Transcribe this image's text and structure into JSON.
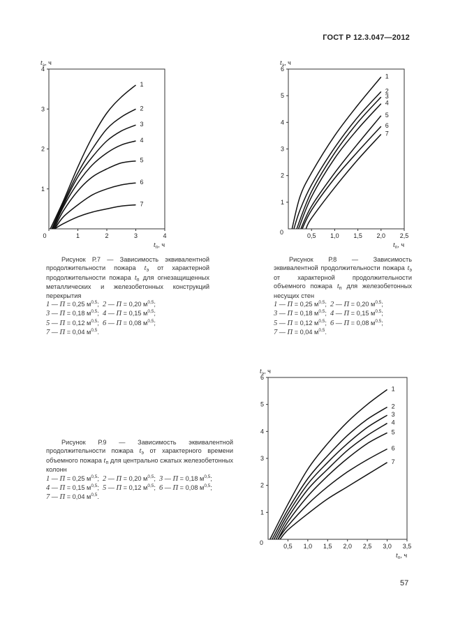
{
  "header": {
    "doc_code": "ГОСТ Р 12.3.047—2012"
  },
  "page_number": "57",
  "chart_data": [
    {
      "type": "line",
      "id": "P7",
      "y_label": {
        "var": "t",
        "sub": "э",
        "unit": ", ч"
      },
      "x_label": {
        "var": "t",
        "sub": "п",
        "unit": ", ч"
      },
      "xlim": [
        0,
        4
      ],
      "ylim": [
        0,
        4
      ],
      "x_ticks": [
        "0",
        "1",
        "2",
        "3",
        "4"
      ],
      "x_tick_values": [
        0,
        1,
        2,
        3,
        4
      ],
      "y_ticks": [
        "1",
        "2",
        "3",
        "4"
      ],
      "y_tick_values": [
        1,
        2,
        3,
        4
      ],
      "origin_label": "0",
      "grid": false,
      "series": [
        {
          "label": "1",
          "points": [
            [
              0.05,
              0
            ],
            [
              0.5,
              0.7
            ],
            [
              1,
              1.55
            ],
            [
              1.5,
              2.3
            ],
            [
              2,
              2.9
            ],
            [
              2.5,
              3.3
            ],
            [
              3,
              3.6
            ]
          ]
        },
        {
          "label": "2",
          "points": [
            [
              0.1,
              0
            ],
            [
              0.5,
              0.65
            ],
            [
              1,
              1.4
            ],
            [
              1.5,
              2.0
            ],
            [
              2,
              2.5
            ],
            [
              2.5,
              2.8
            ],
            [
              3,
              3.0
            ]
          ]
        },
        {
          "label": "3",
          "points": [
            [
              0.12,
              0
            ],
            [
              0.5,
              0.6
            ],
            [
              1,
              1.3
            ],
            [
              1.5,
              1.8
            ],
            [
              2,
              2.2
            ],
            [
              2.5,
              2.45
            ],
            [
              3,
              2.6
            ]
          ]
        },
        {
          "label": "4",
          "points": [
            [
              0.15,
              0
            ],
            [
              0.5,
              0.55
            ],
            [
              1,
              1.15
            ],
            [
              1.5,
              1.6
            ],
            [
              2,
              1.9
            ],
            [
              2.5,
              2.1
            ],
            [
              3,
              2.2
            ]
          ]
        },
        {
          "label": "5",
          "points": [
            [
              0.18,
              0
            ],
            [
              0.5,
              0.45
            ],
            [
              1,
              0.95
            ],
            [
              1.5,
              1.3
            ],
            [
              2,
              1.5
            ],
            [
              2.5,
              1.65
            ],
            [
              3,
              1.7
            ]
          ]
        },
        {
          "label": "6",
          "points": [
            [
              0.2,
              0
            ],
            [
              0.5,
              0.3
            ],
            [
              1,
              0.6
            ],
            [
              1.5,
              0.85
            ],
            [
              2,
              1.0
            ],
            [
              2.5,
              1.1
            ],
            [
              3,
              1.15
            ]
          ]
        },
        {
          "label": "7",
          "points": [
            [
              0.2,
              0
            ],
            [
              0.5,
              0.13
            ],
            [
              1,
              0.3
            ],
            [
              1.5,
              0.42
            ],
            [
              2,
              0.5
            ],
            [
              2.5,
              0.57
            ],
            [
              3,
              0.6
            ]
          ]
        }
      ]
    },
    {
      "type": "line",
      "id": "P8",
      "y_label": {
        "var": "t",
        "sub": "э",
        "unit": ", ч"
      },
      "x_label": {
        "var": "t",
        "sub": "п",
        "unit": ", ч"
      },
      "xlim": [
        0,
        2.5
      ],
      "ylim": [
        0,
        6
      ],
      "x_ticks": [
        "0,5",
        "1,0",
        "1,5",
        "2,0",
        "2,5"
      ],
      "x_tick_values": [
        0.5,
        1,
        1.5,
        2,
        2.5
      ],
      "y_ticks": [
        "1",
        "2",
        "3",
        "4",
        "5",
        "6"
      ],
      "y_tick_values": [
        1,
        2,
        3,
        4,
        5,
        6
      ],
      "origin_label": "0",
      "grid": false,
      "series": [
        {
          "label": "1",
          "points": [
            [
              0.08,
              0
            ],
            [
              0.25,
              1.2
            ],
            [
              0.5,
              2.1
            ],
            [
              1,
              3.5
            ],
            [
              1.5,
              4.65
            ],
            [
              2,
              5.7
            ]
          ]
        },
        {
          "label": "2",
          "points": [
            [
              0.12,
              0
            ],
            [
              0.25,
              0.7
            ],
            [
              0.5,
              1.65
            ],
            [
              1,
              3.05
            ],
            [
              1.5,
              4.2
            ],
            [
              2,
              5.15
            ]
          ]
        },
        {
          "label": "3",
          "points": [
            [
              0.18,
              0
            ],
            [
              0.5,
              1.4
            ],
            [
              1,
              2.85
            ],
            [
              1.5,
              4.0
            ],
            [
              2,
              4.95
            ]
          ]
        },
        {
          "label": "4",
          "points": [
            [
              0.22,
              0
            ],
            [
              0.5,
              1.2
            ],
            [
              1,
              2.65
            ],
            [
              1.5,
              3.75
            ],
            [
              2,
              4.7
            ]
          ]
        },
        {
          "label": "5",
          "points": [
            [
              0.27,
              0
            ],
            [
              0.5,
              0.85
            ],
            [
              1,
              2.1
            ],
            [
              1.5,
              3.2
            ],
            [
              2,
              4.25
            ]
          ]
        },
        {
          "label": "6",
          "points": [
            [
              0.3,
              0
            ],
            [
              0.5,
              0.7
            ],
            [
              1,
              1.9
            ],
            [
              1.5,
              2.9
            ],
            [
              2,
              3.85
            ]
          ]
        },
        {
          "label": "7",
          "points": [
            [
              0.38,
              0
            ],
            [
              0.5,
              0.4
            ],
            [
              1,
              1.55
            ],
            [
              1.5,
              2.6
            ],
            [
              2,
              3.55
            ]
          ]
        }
      ]
    },
    {
      "type": "line",
      "id": "P9",
      "y_label": {
        "var": "t",
        "sub": "э",
        "unit": ", ч"
      },
      "x_label": {
        "var": "t",
        "sub": "п",
        "unit": ", ч"
      },
      "xlim": [
        0,
        3.5
      ],
      "ylim": [
        0,
        6
      ],
      "x_ticks": [
        "0,5",
        "1,0",
        "1,5",
        "2,0",
        "2,5",
        "3,0",
        "3,5"
      ],
      "x_tick_values": [
        0.5,
        1,
        1.5,
        2,
        2.5,
        3,
        3.5
      ],
      "y_ticks": [
        "1",
        "2",
        "3",
        "4",
        "5",
        "6"
      ],
      "y_tick_values": [
        1,
        2,
        3,
        4,
        5,
        6
      ],
      "origin_label": "0",
      "grid": false,
      "series": [
        {
          "label": "1",
          "points": [
            [
              0.05,
              0
            ],
            [
              0.5,
              1.3
            ],
            [
              1,
              2.6
            ],
            [
              1.5,
              3.55
            ],
            [
              2,
              4.35
            ],
            [
              2.5,
              5.0
            ],
            [
              3,
              5.55
            ]
          ]
        },
        {
          "label": "2",
          "points": [
            [
              0.1,
              0
            ],
            [
              0.5,
              1.1
            ],
            [
              1,
              2.25
            ],
            [
              1.5,
              3.1
            ],
            [
              2,
              3.85
            ],
            [
              2.5,
              4.45
            ],
            [
              3,
              4.9
            ]
          ]
        },
        {
          "label": "3",
          "points": [
            [
              0.15,
              0
            ],
            [
              0.5,
              0.95
            ],
            [
              1,
              2.05
            ],
            [
              1.5,
              2.85
            ],
            [
              2,
              3.55
            ],
            [
              2.5,
              4.15
            ],
            [
              3,
              4.6
            ]
          ]
        },
        {
          "label": "4",
          "points": [
            [
              0.2,
              0
            ],
            [
              0.5,
              0.8
            ],
            [
              1,
              1.85
            ],
            [
              1.5,
              2.6
            ],
            [
              2,
              3.3
            ],
            [
              2.5,
              3.85
            ],
            [
              3,
              4.3
            ]
          ]
        },
        {
          "label": "5",
          "points": [
            [
              0.25,
              0
            ],
            [
              0.5,
              0.65
            ],
            [
              1,
              1.6
            ],
            [
              1.5,
              2.35
            ],
            [
              2,
              3.0
            ],
            [
              2.5,
              3.55
            ],
            [
              3,
              3.95
            ]
          ]
        },
        {
          "label": "6",
          "points": [
            [
              0.25,
              0
            ],
            [
              0.5,
              0.5
            ],
            [
              1,
              1.3
            ],
            [
              1.5,
              1.95
            ],
            [
              2,
              2.5
            ],
            [
              2.5,
              2.95
            ],
            [
              3,
              3.35
            ]
          ]
        },
        {
          "label": "7",
          "points": [
            [
              0.3,
              0
            ],
            [
              0.5,
              0.35
            ],
            [
              1,
              0.95
            ],
            [
              1.5,
              1.5
            ],
            [
              2,
              1.95
            ],
            [
              2.5,
              2.4
            ],
            [
              3,
              2.85
            ]
          ]
        }
      ]
    }
  ],
  "captions": [
    {
      "id": "P7",
      "text": [
        {
          "t": "Рисунок Р.7 — Зависимость эквивалентной продолжительности пожара "
        },
        {
          "v": "t",
          "s": "э"
        },
        {
          "t": " от характерной продолжительности пожара "
        },
        {
          "v": "t",
          "s": "п"
        },
        {
          "t": " для огнезащищенных металлических и железобетонных конструкций перекрытия"
        }
      ],
      "legend_lines": [
        [
          {
            "num": "1",
            "param": "П",
            "value": "= 0,25 м",
            "exp": "0,5"
          },
          {
            "num": "2",
            "param": "П",
            "value": "= 0,20 м",
            "exp": "0,5"
          }
        ],
        [
          {
            "num": "3",
            "param": "П",
            "value": "= 0,18 м",
            "exp": "0,5"
          },
          {
            "num": "4",
            "param": "П",
            "value": "= 0,15 м",
            "exp": "0,5"
          }
        ],
        [
          {
            "num": "5",
            "param": "П",
            "value": "= 0,12 м",
            "exp": "0,5"
          },
          {
            "num": "6",
            "param": "П",
            "value": "= 0,08 м",
            "exp": "0,5"
          }
        ],
        [
          {
            "num": "7",
            "param": "П",
            "value": "= 0,04 м",
            "exp": "0,5"
          }
        ]
      ]
    },
    {
      "id": "P8",
      "text": [
        {
          "t": "Рисунок Р.8 — Зависимость эквивалентной продолжительности пожара "
        },
        {
          "v": "t",
          "s": "э"
        },
        {
          "t": " от характерной продолжительности объемного пожара "
        },
        {
          "v": "t",
          "s": "п"
        },
        {
          "t": " для железобетонных несущих стен"
        }
      ],
      "legend_lines": [
        [
          {
            "num": "1",
            "param": "П",
            "value": "= 0,25 м",
            "exp": "0,5"
          },
          {
            "num": "2",
            "param": "П",
            "value": "= 0,20 м",
            "exp": "0,5"
          }
        ],
        [
          {
            "num": "3",
            "param": "П",
            "value": "= 0,18 м",
            "exp": "0,5"
          },
          {
            "num": "4",
            "param": "П",
            "value": "= 0,15 м",
            "exp": "0,5"
          }
        ],
        [
          {
            "num": "5",
            "param": "П",
            "value": "= 0,12 м",
            "exp": "0,5"
          },
          {
            "num": "6",
            "param": "П",
            "value": "= 0,08 м",
            "exp": "0,5"
          }
        ],
        [
          {
            "num": "7",
            "param": "П",
            "value": "= 0,04 м",
            "exp": "0,5"
          }
        ]
      ]
    },
    {
      "id": "P9",
      "text": [
        {
          "t": "Рисунок Р.9 — Зависимость эквивалентной продолжительности пожара "
        },
        {
          "v": "t",
          "s": "э"
        },
        {
          "t": " от характерного времени объемного пожара "
        },
        {
          "v": "t",
          "s": "п"
        },
        {
          "t": " для центрально сжатых железобетонных колонн"
        }
      ],
      "legend_lines": [
        [
          {
            "num": "1",
            "param": "П",
            "value": "= 0,25 м",
            "exp": "0,5"
          },
          {
            "num": "2",
            "param": "П",
            "value": "= 0,20 м",
            "exp": "0,5"
          },
          {
            "num": "3",
            "param": "П",
            "value": "= 0,18 м",
            "exp": "0,5"
          }
        ],
        [
          {
            "num": "4",
            "param": "П",
            "value": "= 0,15 м",
            "exp": "0,5"
          },
          {
            "num": "5",
            "param": "П",
            "value": "= 0,12 м",
            "exp": "0,5"
          },
          {
            "num": "6",
            "param": "П",
            "value": "= 0,08 м",
            "exp": "0,5"
          }
        ],
        [
          {
            "num": "7",
            "param": "П",
            "value": "= 0,04 м",
            "exp": "0,5"
          }
        ]
      ]
    }
  ]
}
